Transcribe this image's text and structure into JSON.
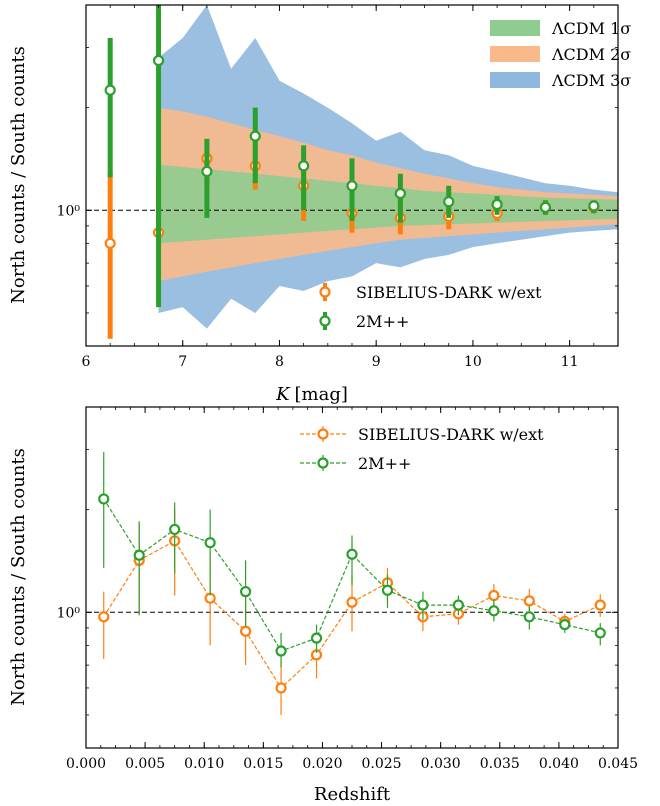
{
  "chart_data": [
    {
      "type": "area",
      "xlabel": "K [mag]",
      "xlabel_italic": "K",
      "xlabel_unit": "[mag]",
      "ylabel": "North counts / South counts",
      "xlim": [
        6,
        11.5
      ],
      "ylim": [
        0.4,
        4.0
      ],
      "yscale": "log",
      "xticks": [
        6,
        7,
        8,
        9,
        10,
        11
      ],
      "yticks": [
        {
          "value": 1.0,
          "label": "10⁰"
        }
      ],
      "reference_line": 1.0,
      "legend_position": "lower-right (points) / upper-right (bands)",
      "bands": [
        {
          "name": "ΛCDM 3σ",
          "color": "#8fb8de",
          "x": [
            6.75,
            7.0,
            7.25,
            7.5,
            7.75,
            8.0,
            8.25,
            8.5,
            8.75,
            9.0,
            9.25,
            9.5,
            9.75,
            10.0,
            10.25,
            10.5,
            10.75,
            11.0,
            11.25,
            11.5
          ],
          "lower": [
            0.5,
            0.52,
            0.45,
            0.55,
            0.5,
            0.6,
            0.58,
            0.62,
            0.64,
            0.7,
            0.68,
            0.72,
            0.74,
            0.78,
            0.8,
            0.82,
            0.84,
            0.86,
            0.87,
            0.88
          ],
          "upper": [
            2.8,
            3.2,
            4.0,
            2.6,
            3.2,
            2.4,
            2.2,
            2.0,
            1.8,
            1.6,
            1.7,
            1.5,
            1.45,
            1.35,
            1.3,
            1.25,
            1.2,
            1.18,
            1.15,
            1.13
          ]
        },
        {
          "name": "ΛCDM 2σ",
          "color": "#f9b98b",
          "x": [
            6.75,
            7.0,
            7.25,
            7.5,
            7.75,
            8.0,
            8.25,
            8.5,
            8.75,
            9.0,
            9.25,
            9.5,
            9.75,
            10.0,
            10.25,
            10.5,
            10.75,
            11.0,
            11.25,
            11.5
          ],
          "lower": [
            0.62,
            0.64,
            0.66,
            0.68,
            0.7,
            0.72,
            0.74,
            0.76,
            0.78,
            0.8,
            0.82,
            0.83,
            0.84,
            0.85,
            0.86,
            0.87,
            0.88,
            0.89,
            0.9,
            0.91
          ],
          "upper": [
            2.0,
            1.95,
            1.88,
            1.8,
            1.72,
            1.65,
            1.58,
            1.5,
            1.45,
            1.38,
            1.33,
            1.28,
            1.24,
            1.2,
            1.17,
            1.15,
            1.13,
            1.12,
            1.11,
            1.1
          ]
        },
        {
          "name": "ΛCDM 1σ",
          "color": "#8fcc8f",
          "x": [
            6.75,
            7.0,
            7.25,
            7.5,
            7.75,
            8.0,
            8.25,
            8.5,
            8.75,
            9.0,
            9.25,
            9.5,
            9.75,
            10.0,
            10.25,
            10.5,
            10.75,
            11.0,
            11.25,
            11.5
          ],
          "lower": [
            0.8,
            0.81,
            0.82,
            0.83,
            0.84,
            0.85,
            0.86,
            0.87,
            0.88,
            0.89,
            0.9,
            0.905,
            0.91,
            0.915,
            0.92,
            0.925,
            0.93,
            0.935,
            0.94,
            0.945
          ],
          "upper": [
            1.36,
            1.34,
            1.32,
            1.3,
            1.28,
            1.26,
            1.24,
            1.22,
            1.2,
            1.18,
            1.16,
            1.14,
            1.13,
            1.12,
            1.11,
            1.1,
            1.09,
            1.085,
            1.08,
            1.075
          ]
        }
      ],
      "series": [
        {
          "name": "SIBELIUS-DARK w/ext",
          "color": "#ff7f0e",
          "x": [
            6.25,
            6.75,
            7.25,
            7.75,
            8.25,
            8.75,
            9.25,
            9.75,
            10.25,
            10.75,
            11.25
          ],
          "y": [
            0.8,
            0.86,
            1.42,
            1.35,
            1.18,
            0.98,
            0.95,
            0.96,
            0.98,
            1.02,
            1.02
          ],
          "yerr_low": [
            0.42,
            0.86,
            1.2,
            1.15,
            0.93,
            0.86,
            0.85,
            0.88,
            0.93,
            0.97,
            0.98
          ],
          "yerr_high": [
            1.3,
            1.3,
            1.62,
            1.55,
            1.38,
            1.14,
            1.1,
            1.06,
            1.05,
            1.07,
            1.06
          ]
        },
        {
          "name": "2M++",
          "color": "#2ca02c",
          "x": [
            6.25,
            6.75,
            7.25,
            7.75,
            8.25,
            8.75,
            9.25,
            9.75,
            10.25,
            10.75,
            11.25
          ],
          "y": [
            2.25,
            2.75,
            1.3,
            1.65,
            1.35,
            1.18,
            1.12,
            1.06,
            1.04,
            1.02,
            1.03
          ],
          "yerr_low": [
            1.25,
            0.52,
            0.95,
            1.2,
            1.0,
            0.93,
            0.92,
            0.95,
            0.97,
            0.97,
            0.98
          ],
          "yerr_high": [
            3.2,
            4.0,
            1.62,
            2.0,
            1.55,
            1.42,
            1.28,
            1.18,
            1.1,
            1.07,
            1.07
          ]
        }
      ]
    },
    {
      "type": "line",
      "xlabel": "Redshift",
      "ylabel": "North counts / South counts",
      "xlim": [
        0.0,
        0.045
      ],
      "ylim": [
        0.4,
        4.0
      ],
      "yscale": "log",
      "xticks": [
        0.0,
        0.005,
        0.01,
        0.015,
        0.02,
        0.025,
        0.03,
        0.035,
        0.04,
        0.045
      ],
      "xticklabels": [
        "0.000",
        "0.005",
        "0.010",
        "0.015",
        "0.020",
        "0.025",
        "0.030",
        "0.035",
        "0.040",
        "0.045"
      ],
      "yticks": [
        {
          "value": 1.0,
          "label": "10⁰"
        }
      ],
      "reference_line": 1.0,
      "legend_position": "top-right",
      "series": [
        {
          "name": "SIBELIUS-DARK w/ext",
          "color": "#ff7f0e",
          "x": [
            0.0015,
            0.0045,
            0.0075,
            0.0105,
            0.0135,
            0.0165,
            0.0195,
            0.0225,
            0.0255,
            0.0285,
            0.0315,
            0.0345,
            0.0375,
            0.0405,
            0.0435
          ],
          "y": [
            0.97,
            1.42,
            1.62,
            1.1,
            0.88,
            0.6,
            0.75,
            1.07,
            1.22,
            0.97,
            0.99,
            1.12,
            1.08,
            0.94,
            1.05
          ],
          "yerr_low": [
            0.73,
            0.99,
            1.12,
            0.8,
            0.7,
            0.5,
            0.64,
            0.88,
            1.08,
            0.88,
            0.92,
            1.01,
            0.98,
            0.9,
            0.97
          ],
          "yerr_high": [
            1.15,
            1.82,
            2.0,
            1.5,
            1.12,
            0.72,
            0.85,
            1.28,
            1.35,
            1.07,
            1.06,
            1.21,
            1.17,
            0.99,
            1.13
          ]
        },
        {
          "name": "2M++",
          "color": "#2ca02c",
          "x": [
            0.0015,
            0.0045,
            0.0075,
            0.0105,
            0.0135,
            0.0165,
            0.0195,
            0.0225,
            0.0255,
            0.0285,
            0.0315,
            0.0345,
            0.0375,
            0.0405,
            0.0435
          ],
          "y": [
            2.15,
            1.47,
            1.75,
            1.6,
            1.15,
            0.77,
            0.84,
            1.48,
            1.16,
            1.05,
            1.05,
            1.01,
            0.97,
            0.92,
            0.87
          ],
          "yerr_low": [
            1.35,
            0.98,
            1.3,
            1.12,
            0.91,
            0.69,
            0.76,
            1.2,
            1.03,
            0.95,
            0.98,
            0.94,
            0.89,
            0.87,
            0.8
          ],
          "yerr_high": [
            2.95,
            1.85,
            2.1,
            2.0,
            1.42,
            0.87,
            0.92,
            1.68,
            1.29,
            1.15,
            1.12,
            1.09,
            1.04,
            0.96,
            0.93
          ]
        }
      ]
    }
  ]
}
